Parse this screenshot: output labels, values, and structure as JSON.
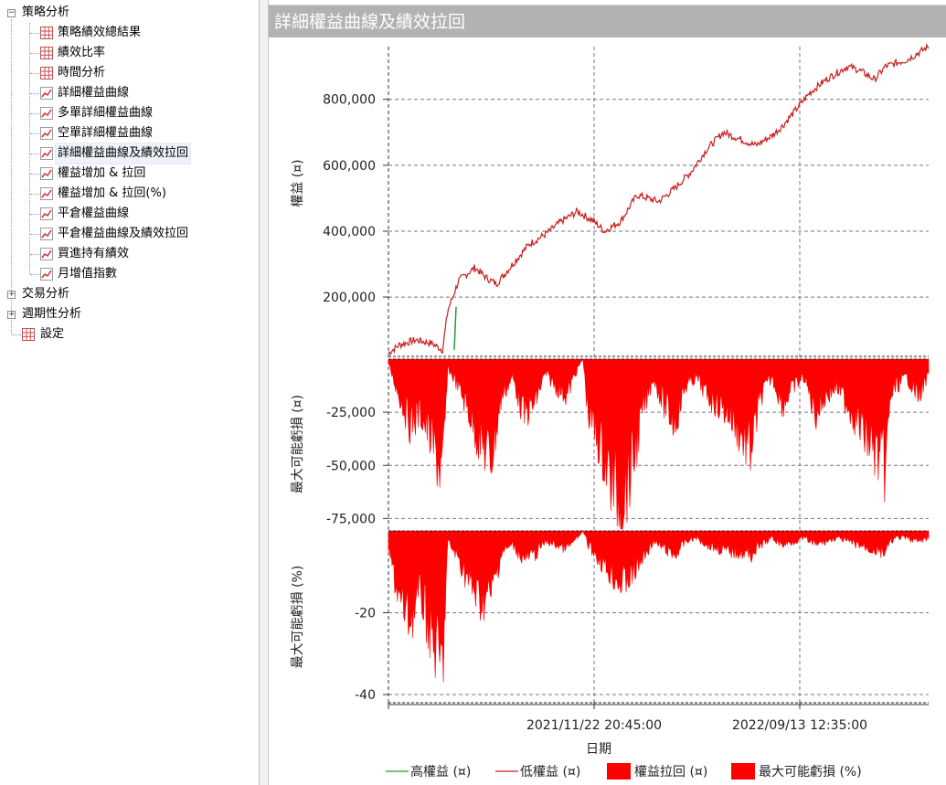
{
  "tree": {
    "root_label": "策略分析",
    "children": [
      {
        "label": "策略績效總結果",
        "icon": "table-icon"
      },
      {
        "label": "績效比率",
        "icon": "table-icon"
      },
      {
        "label": "時間分析",
        "icon": "table-icon"
      },
      {
        "label": "詳細權益曲線",
        "icon": "line-chart-icon"
      },
      {
        "label": "多單詳細權益曲線",
        "icon": "line-chart-icon"
      },
      {
        "label": "空單詳細權益曲線",
        "icon": "line-chart-icon"
      },
      {
        "label": "詳細權益曲線及績效拉回",
        "icon": "line-chart-icon",
        "selected": true
      },
      {
        "label": "權益增加 & 拉回",
        "icon": "line-chart-icon"
      },
      {
        "label": "權益增加 & 拉回(%)",
        "icon": "line-chart-icon"
      },
      {
        "label": "平倉權益曲線",
        "icon": "line-chart-icon"
      },
      {
        "label": "平倉權益曲線及績效拉回",
        "icon": "line-chart-icon"
      },
      {
        "label": "買進持有績效",
        "icon": "line-chart-icon"
      },
      {
        "label": "月增值指數",
        "icon": "line-chart-icon"
      }
    ],
    "other_roots": [
      {
        "label": "交易分析",
        "expander": "+"
      },
      {
        "label": "週期性分析",
        "expander": "+"
      },
      {
        "label": "設定",
        "icon": "table-icon"
      }
    ],
    "root_expander": "−"
  },
  "panel": {
    "title": "詳細權益曲線及績效拉回"
  },
  "colors": {
    "equity_line": "#c81e1e",
    "high_equity": "#2a9a2a",
    "drawdown_fill": "#ff0000",
    "titlebar_bg": "#b2b2b2",
    "grid": "#777777"
  },
  "chart_data": [
    {
      "type": "line",
      "ylabel": "權益 (¤)",
      "yticks": [
        "200,000",
        "400,000",
        "600,000",
        "800,000"
      ],
      "ylim": [
        20000,
        960000
      ],
      "series": [
        {
          "name": "高權益 (¤)",
          "color": "#2a9a2a"
        },
        {
          "name": "低權益 (¤)",
          "color": "#c81e1e",
          "x": [
            0,
            0.02,
            0.05,
            0.08,
            0.1,
            0.11,
            0.13,
            0.16,
            0.18,
            0.2,
            0.23,
            0.26,
            0.29,
            0.32,
            0.35,
            0.38,
            0.4,
            0.43,
            0.46,
            0.5,
            0.53,
            0.56,
            0.59,
            0.62,
            0.65,
            0.68,
            0.71,
            0.73,
            0.75,
            0.78,
            0.81,
            0.83,
            0.85,
            0.87,
            0.9,
            0.92,
            0.94,
            0.96,
            0.98,
            1.0
          ],
          "values": [
            30000,
            55000,
            70000,
            60000,
            40000,
            160000,
            250000,
            290000,
            260000,
            240000,
            300000,
            360000,
            390000,
            430000,
            460000,
            430000,
            400000,
            430000,
            510000,
            490000,
            530000,
            580000,
            650000,
            700000,
            680000,
            660000,
            690000,
            720000,
            760000,
            820000,
            860000,
            880000,
            900000,
            890000,
            860000,
            900000,
            910000,
            920000,
            940000,
            960000
          ]
        }
      ]
    },
    {
      "type": "area",
      "ylabel": "最大可能虧損 (¤)",
      "yticks": [
        "-25,000",
        "-50,000",
        "-75,000"
      ],
      "ylim": [
        -80000,
        0
      ],
      "series": [
        {
          "name": "權益拉回 (¤)",
          "color": "#ff0000",
          "x": [
            0,
            0.02,
            0.04,
            0.06,
            0.08,
            0.1,
            0.11,
            0.13,
            0.15,
            0.17,
            0.19,
            0.21,
            0.23,
            0.25,
            0.27,
            0.29,
            0.31,
            0.33,
            0.35,
            0.36,
            0.37,
            0.39,
            0.41,
            0.43,
            0.45,
            0.47,
            0.49,
            0.51,
            0.53,
            0.55,
            0.57,
            0.59,
            0.61,
            0.63,
            0.65,
            0.67,
            0.69,
            0.71,
            0.73,
            0.75,
            0.77,
            0.79,
            0.81,
            0.83,
            0.85,
            0.87,
            0.89,
            0.91,
            0.92,
            0.93,
            0.94,
            0.96,
            0.98,
            1.0
          ],
          "values": [
            -3000,
            -20000,
            -35000,
            -30000,
            -45000,
            -65000,
            -5000,
            -15000,
            -30000,
            -45000,
            -55000,
            -20000,
            -10000,
            -30000,
            -25000,
            -8000,
            -15000,
            -20000,
            -5000,
            0,
            -30000,
            -45000,
            -65000,
            -78000,
            -60000,
            -30000,
            -10000,
            -25000,
            -35000,
            -15000,
            -10000,
            -20000,
            -25000,
            -30000,
            -40000,
            -50000,
            -20000,
            -10000,
            -25000,
            -15000,
            -10000,
            -30000,
            -20000,
            -15000,
            -25000,
            -35000,
            -45000,
            -55000,
            -60000,
            -20000,
            -15000,
            -10000,
            -20000,
            -10000
          ]
        }
      ]
    },
    {
      "type": "area",
      "ylabel": "最大可能虧損 (%)",
      "yticks": [
        "-20",
        "-40"
      ],
      "ylim": [
        -42,
        0
      ],
      "series": [
        {
          "name": "最大可能虧損 (%)",
          "color": "#ff0000",
          "x": [
            0,
            0.02,
            0.04,
            0.06,
            0.08,
            0.1,
            0.11,
            0.13,
            0.15,
            0.17,
            0.19,
            0.21,
            0.23,
            0.25,
            0.27,
            0.29,
            0.31,
            0.33,
            0.35,
            0.36,
            0.37,
            0.39,
            0.41,
            0.43,
            0.45,
            0.47,
            0.49,
            0.51,
            0.53,
            0.55,
            0.57,
            0.59,
            0.61,
            0.63,
            0.65,
            0.67,
            0.69,
            0.71,
            0.73,
            0.75,
            0.77,
            0.79,
            0.81,
            0.83,
            0.85,
            0.87,
            0.89,
            0.91,
            0.92,
            0.93,
            0.94,
            0.96,
            0.98,
            1.0
          ],
          "values": [
            -5,
            -20,
            -25,
            -18,
            -30,
            -40,
            -3,
            -8,
            -15,
            -20,
            -18,
            -6,
            -4,
            -8,
            -7,
            -3,
            -4,
            -5,
            -2,
            0,
            -4,
            -8,
            -12,
            -15,
            -13,
            -8,
            -3,
            -5,
            -7,
            -3,
            -2,
            -4,
            -5,
            -6,
            -6,
            -7,
            -4,
            -2,
            -4,
            -3,
            -2,
            -4,
            -3,
            -2,
            -3,
            -4,
            -5,
            -6,
            -6,
            -3,
            -2,
            -2,
            -3,
            -2
          ]
        }
      ]
    }
  ],
  "x_axis": {
    "label": "日期",
    "ticks": [
      "2021/11/22 20:45:00",
      "2022/09/13 12:35:00"
    ]
  },
  "legend": [
    {
      "label": "高權益 (¤)",
      "kind": "line",
      "color": "#2a9a2a"
    },
    {
      "label": "低權益 (¤)",
      "kind": "line",
      "color": "#c81e1e"
    },
    {
      "label": "權益拉回 (¤)",
      "kind": "box",
      "color": "#ff0000"
    },
    {
      "label": "最大可能虧損 (%)",
      "kind": "box",
      "color": "#ff0000"
    }
  ]
}
